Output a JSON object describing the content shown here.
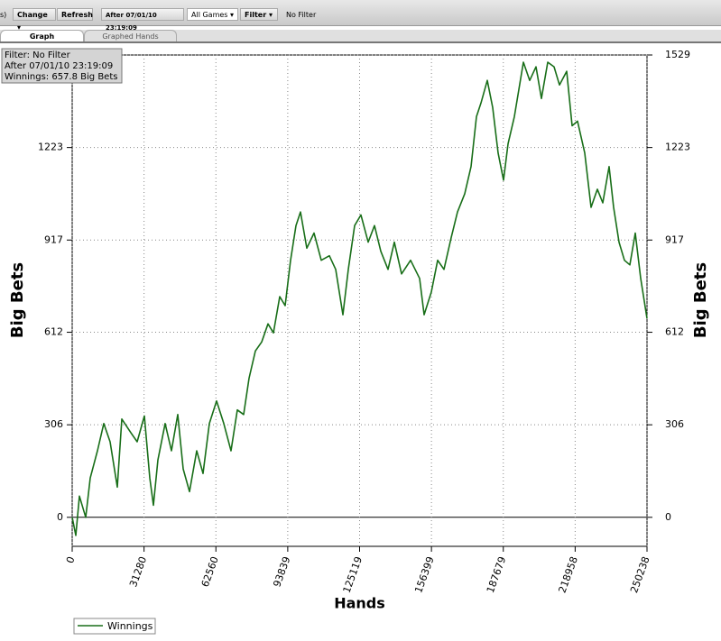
{
  "toolbar": {
    "partial": "s)",
    "change": "Change",
    "refresh": "Refresh",
    "after": "After 07/01/10 23:19:09",
    "games": "All Games",
    "filter": "Filter",
    "status": "No Filter"
  },
  "tabs": [
    "Graph",
    "Graphed Hands"
  ],
  "chart_data": {
    "type": "line",
    "annotations": [
      "Filter: No Filter",
      "After 07/01/10 23:19:09",
      "Winnings: 657.8 Big Bets"
    ],
    "x_label": "Hands",
    "y_label": "Big Bets",
    "x": [
      0,
      1571,
      3143,
      5893,
      7857,
      11000,
      13749,
      16499,
      19642,
      21606,
      25535,
      28284,
      31427,
      33784,
      35356,
      37320,
      40463,
      43212,
      45962,
      48319,
      51069,
      54212,
      56962,
      59712,
      62854,
      65997,
      69140,
      71890,
      74640,
      76997,
      79747,
      82496,
      85246,
      87603,
      90353,
      92710,
      95067,
      97424,
      99389,
      102138,
      105281,
      108424,
      111959,
      114709,
      117852,
      120209,
      122959,
      125709,
      128852,
      131601,
      134351,
      137494,
      140244,
      143387,
      147315,
      151243,
      153208,
      156351,
      159100,
      161850,
      164993,
      167743,
      170885,
      173635,
      175992,
      177956,
      180706,
      183063,
      185420,
      187778,
      189742,
      192492,
      194456,
      196420,
      199170,
      201919,
      204277,
      207026,
      209776,
      212133,
      215276,
      217633,
      219990,
      223133,
      225883,
      228633,
      230990,
      233740,
      235704,
      238061,
      240418,
      242775,
      245132,
      247489,
      250238
    ],
    "series": [
      {
        "name": "Winnings",
        "color": "#186e18",
        "values": [
          0,
          -60,
          70,
          0,
          130,
          220,
          310,
          250,
          100,
          325,
          280,
          250,
          335,
          130,
          40,
          190,
          310,
          220,
          340,
          160,
          85,
          220,
          145,
          310,
          385,
          310,
          220,
          355,
          340,
          460,
          550,
          580,
          640,
          610,
          730,
          700,
          850,
          965,
          1010,
          890,
          940,
          850,
          865,
          820,
          670,
          820,
          965,
          1000,
          910,
          965,
          880,
          820,
          910,
          805,
          850,
          790,
          670,
          745,
          850,
          820,
          925,
          1010,
          1070,
          1160,
          1325,
          1370,
          1445,
          1355,
          1205,
          1115,
          1235,
          1325,
          1415,
          1505,
          1445,
          1490,
          1385,
          1505,
          1490,
          1430,
          1475,
          1295,
          1310,
          1205,
          1025,
          1085,
          1040,
          1160,
          1025,
          910,
          850,
          835,
          940,
          790,
          657.8
        ]
      }
    ],
    "xlim": [
      0,
      250238
    ],
    "xticks": [
      0,
      31280,
      62560,
      93839,
      125119,
      156399,
      187679,
      218958,
      250238
    ],
    "ylim": [
      -96,
      1529
    ],
    "yticks": [
      0,
      306,
      612,
      917,
      1223,
      1529
    ],
    "grid": true
  }
}
